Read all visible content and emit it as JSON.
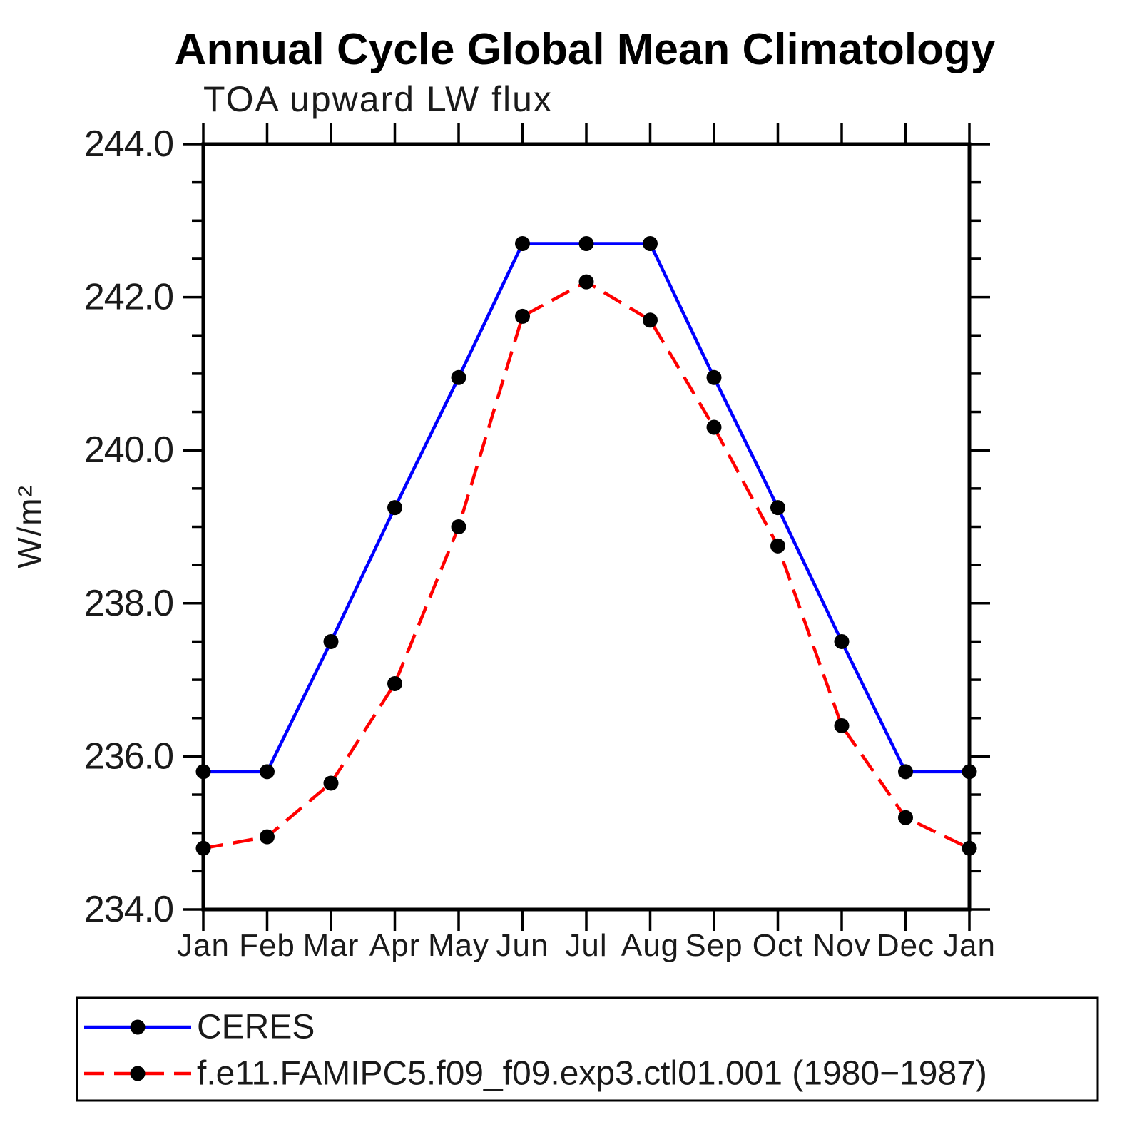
{
  "title": "Annual Cycle Global Mean Climatology",
  "subtitle": "TOA upward LW flux",
  "ylabel": "W/m²",
  "colors": {
    "ceres_line": "#0000ff",
    "model_line": "#ff0000",
    "marker": "#000000",
    "axis": "#000000"
  },
  "legend": {
    "entries": [
      {
        "label": "CERES",
        "color": "#0000ff",
        "style": "solid"
      },
      {
        "label": "f.e11.FAMIPC5.f09_f09.exp3.ctl01.001 (1980−1987)",
        "color": "#ff0000",
        "style": "dashed"
      }
    ]
  },
  "chart_data": {
    "type": "line",
    "categories": [
      "Jan",
      "Feb",
      "Mar",
      "Apr",
      "May",
      "Jun",
      "Jul",
      "Aug",
      "Sep",
      "Oct",
      "Nov",
      "Dec",
      "Jan"
    ],
    "series": [
      {
        "name": "CERES",
        "color": "#0000ff",
        "style": "solid",
        "marker": "circle",
        "marker_color": "#000000",
        "values": [
          235.8,
          235.8,
          237.5,
          239.25,
          240.95,
          242.7,
          242.7,
          242.7,
          240.95,
          239.25,
          237.5,
          235.8,
          235.8
        ]
      },
      {
        "name": "f.e11.FAMIPC5.f09_f09.exp3.ctl01.001 (1980−1987)",
        "color": "#ff0000",
        "style": "dashed",
        "marker": "circle",
        "marker_color": "#000000",
        "values": [
          234.8,
          234.95,
          235.65,
          236.95,
          239.0,
          241.75,
          242.2,
          241.7,
          240.3,
          238.75,
          236.4,
          235.2,
          234.8
        ]
      }
    ],
    "title": "Annual Cycle Global Mean Climatology",
    "subtitle": "TOA upward LW flux",
    "xlabel": "",
    "ylabel": "W/m²",
    "ylim": [
      234.0,
      244.0
    ],
    "ytick_major": 2.0,
    "ytick_minor": 0.5,
    "ytick_labels": [
      "234.0",
      "236.0",
      "238.0",
      "240.0",
      "242.0",
      "244.0"
    ],
    "grid": false,
    "legend_position": "bottom"
  }
}
